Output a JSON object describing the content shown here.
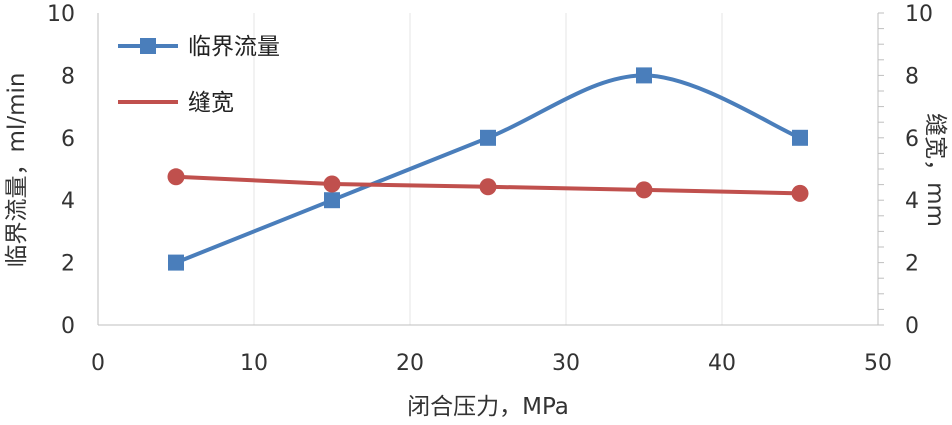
{
  "chart_data": {
    "type": "line",
    "xlabel": "闭合压力，MPa",
    "ylabel_left": "临界流量，ml/min",
    "ylabel_right": "缝宽，mm",
    "xlim": [
      0,
      50
    ],
    "ylim_left": [
      0,
      10
    ],
    "ylim_right": [
      0,
      10
    ],
    "x_ticks": [
      "0",
      "10",
      "20",
      "30",
      "40",
      "50"
    ],
    "y_ticks_left": [
      "0",
      "2",
      "4",
      "6",
      "8",
      "10"
    ],
    "y_ticks_right": [
      "0",
      "2",
      "4",
      "6",
      "8",
      "10"
    ],
    "grid": "vertical",
    "legend_position": "top-left",
    "series": [
      {
        "name": "临界流量",
        "axis": "left",
        "marker": "square",
        "smooth": true,
        "color": "#4a7ebb",
        "x": [
          5,
          15,
          25,
          35,
          45
        ],
        "values": [
          2,
          4,
          6,
          8,
          6
        ]
      },
      {
        "name": "缝宽",
        "axis": "right",
        "marker": "circle",
        "smooth": false,
        "color": "#c0504d",
        "x": [
          5,
          15,
          25,
          35,
          45
        ],
        "values": [
          4.75,
          4.52,
          4.43,
          4.33,
          4.22
        ]
      }
    ]
  }
}
